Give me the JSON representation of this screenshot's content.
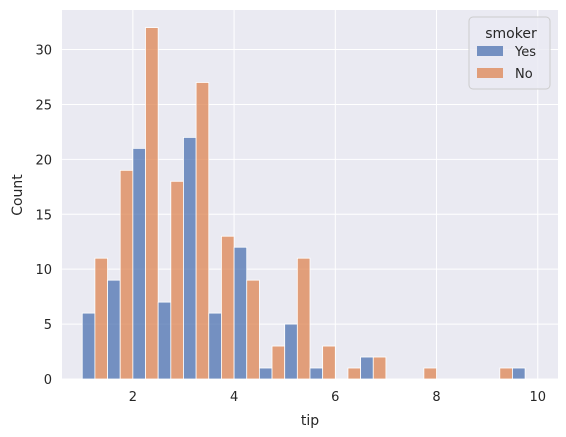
{
  "chart_data": {
    "type": "bar",
    "title": "",
    "xlabel": "tip",
    "ylabel": "Count",
    "xlim": [
      0.6,
      10.4
    ],
    "ylim": [
      0,
      33.6
    ],
    "xticks": [
      2,
      4,
      6,
      8,
      10
    ],
    "yticks": [
      0,
      5,
      10,
      15,
      20,
      25,
      30
    ],
    "grid": true,
    "legend": {
      "title": "smoker",
      "placement": "top-right"
    },
    "bin_edges": [
      1.0,
      1.5,
      2.0,
      2.5,
      3.0,
      3.5,
      4.0,
      4.5,
      5.0,
      5.5,
      6.0,
      6.5,
      7.0,
      7.5,
      8.0,
      8.5,
      9.0,
      9.5,
      10.0
    ],
    "series": [
      {
        "name": "Yes",
        "color": "#4c72b0",
        "values": [
          6,
          9,
          21,
          7,
          22,
          6,
          12,
          1,
          5,
          1,
          0,
          2,
          0,
          0,
          0,
          0,
          0,
          1
        ]
      },
      {
        "name": "No",
        "color": "#dd8452",
        "values": [
          11,
          19,
          32,
          18,
          27,
          13,
          9,
          3,
          11,
          3,
          1,
          2,
          0,
          1,
          0,
          0,
          1,
          0
        ]
      }
    ]
  }
}
